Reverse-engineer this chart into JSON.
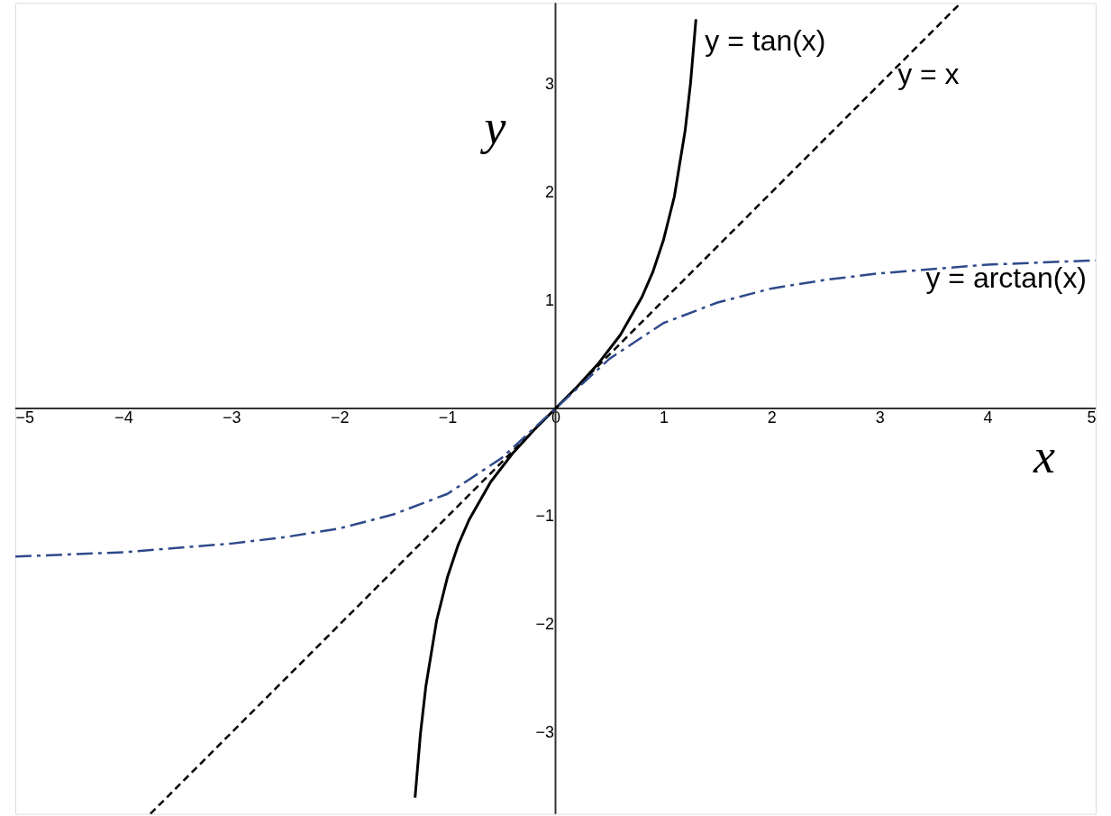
{
  "chart_data": {
    "type": "line",
    "xlabel": "x",
    "ylabel": "y",
    "xlim": [
      -5,
      5
    ],
    "ylim": [
      -3.75,
      3.75
    ],
    "xticks": [
      -5,
      -4,
      -3,
      -2,
      -1,
      0,
      1,
      2,
      3,
      4,
      5
    ],
    "yticks": [
      -3,
      -2,
      -1,
      1,
      2,
      3
    ],
    "grid": false,
    "series": [
      {
        "name": "y = tan(x)",
        "color": "#000000",
        "line_style": "solid",
        "x": [
          -1.3,
          -1.25,
          -1.2,
          -1.1,
          -1.0,
          -0.9,
          -0.8,
          -0.6,
          -0.4,
          -0.2,
          0,
          0.2,
          0.4,
          0.6,
          0.8,
          0.9,
          1.0,
          1.1,
          1.2,
          1.25,
          1.3
        ],
        "values": [
          -3.6,
          -3.01,
          -2.57,
          -1.96,
          -1.56,
          -1.26,
          -1.03,
          -0.68,
          -0.42,
          -0.2,
          0,
          0.2,
          0.42,
          0.68,
          1.03,
          1.26,
          1.56,
          1.96,
          2.57,
          3.01,
          3.6
        ]
      },
      {
        "name": "y = x",
        "color": "#000000",
        "line_style": "dashed",
        "x": [
          -3.75,
          3.75
        ],
        "values": [
          -3.75,
          3.75
        ]
      },
      {
        "name": "y = arctan(x)",
        "color": "#2e4a8a",
        "line_style": "dashdot",
        "x": [
          -5,
          -4,
          -3,
          -2.5,
          -2,
          -1.5,
          -1,
          -0.5,
          0,
          0.5,
          1,
          1.5,
          2,
          2.5,
          3,
          4,
          5
        ],
        "values": [
          -1.37,
          -1.33,
          -1.25,
          -1.19,
          -1.11,
          -0.98,
          -0.79,
          -0.46,
          0,
          0.46,
          0.79,
          0.98,
          1.11,
          1.19,
          1.25,
          1.33,
          1.37
        ]
      }
    ]
  }
}
